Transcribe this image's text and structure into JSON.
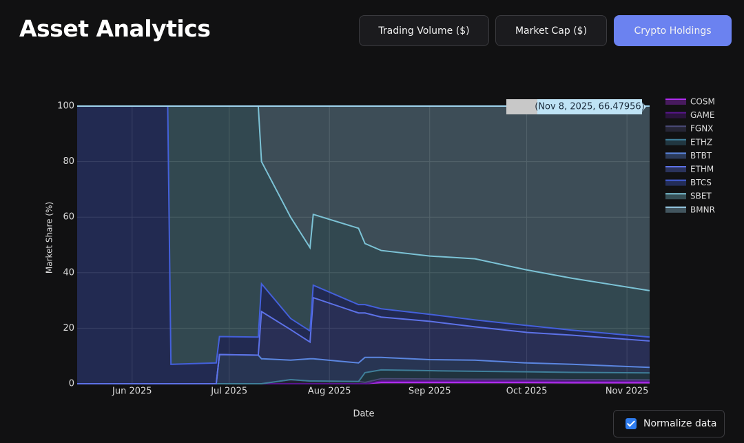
{
  "header": {
    "title": "Asset Analytics"
  },
  "buttons": [
    "Trading Volume ($)",
    "Market Cap ($)",
    "Crypto Holdings"
  ],
  "chart_data": {
    "type": "area",
    "stacked": true,
    "grid": true,
    "xlabel": "Date",
    "ylabel": "Market Share (%)",
    "annotation": "(Nov 8, 2025, 66.47956)",
    "xlim": [
      "2025-05-15",
      "2025-11-08"
    ],
    "xticks": [
      {
        "value": "2025-06-01",
        "label": "Jun 2025"
      },
      {
        "value": "2025-07-01",
        "label": "Jul 2025"
      },
      {
        "value": "2025-08-01",
        "label": "Aug 2025"
      },
      {
        "value": "2025-09-01",
        "label": "Sep 2025"
      },
      {
        "value": "2025-10-01",
        "label": "Oct 2025"
      },
      {
        "value": "2025-11-01",
        "label": "Nov 2025"
      }
    ],
    "ylim": [
      0,
      100
    ],
    "yticks": [
      0,
      20,
      40,
      60,
      80,
      100
    ],
    "x": [
      "2025-05-15",
      "2025-06-12",
      "2025-06-13",
      "2025-06-27",
      "2025-06-28",
      "2025-07-10",
      "2025-07-11",
      "2025-07-20",
      "2025-07-26",
      "2025-07-27",
      "2025-08-10",
      "2025-08-12",
      "2025-08-17",
      "2025-09-01",
      "2025-09-15",
      "2025-10-01",
      "2025-10-15",
      "2025-11-08"
    ],
    "series": [
      {
        "name": "COSM",
        "color": "#b02cf0",
        "values": [
          0,
          0,
          0,
          0,
          0,
          0,
          0,
          0,
          0,
          0,
          0,
          0,
          0.5,
          0.5,
          0.5,
          0.5,
          0.4,
          0.4
        ]
      },
      {
        "name": "GAME",
        "color": "#5a1690",
        "values": [
          0,
          0,
          0,
          0,
          0,
          0,
          0,
          0,
          0,
          0,
          0,
          0,
          0.5,
          0.5,
          0.5,
          0.5,
          0.5,
          0.5
        ]
      },
      {
        "name": "FGNX",
        "color": "#4a4a78",
        "values": [
          0,
          0,
          0,
          0,
          0,
          0,
          0,
          1.5,
          1,
          1,
          0.8,
          0.5,
          0.8,
          0.7,
          0.6,
          0.6,
          0.6,
          0.5
        ]
      },
      {
        "name": "ETHZ",
        "color": "#3f7f9a",
        "values": [
          0,
          0,
          0,
          0,
          0,
          0,
          0,
          0,
          0,
          0,
          0,
          3.5,
          3.2,
          3,
          2.9,
          2.7,
          2.6,
          2.5
        ]
      },
      {
        "name": "BTBT",
        "color": "#5b86e0",
        "values": [
          0,
          0,
          0,
          0,
          10.5,
          10.3,
          9,
          7,
          8,
          8,
          6.7,
          5.5,
          4.5,
          4,
          4,
          3.2,
          2.9,
          2
        ]
      },
      {
        "name": "ETHM",
        "color": "#5d72e8",
        "values": [
          0,
          0,
          0,
          0,
          0,
          0,
          17,
          11,
          6,
          22,
          18,
          16,
          14.5,
          13.8,
          12,
          11,
          10.5,
          9.5
        ]
      },
      {
        "name": "BTCS",
        "color": "#4460dc",
        "values": [
          100,
          100,
          7,
          7.5,
          6.5,
          6.5,
          10,
          4,
          4,
          4.5,
          3,
          3,
          3,
          2.5,
          2.5,
          2.5,
          1.8,
          1.4
        ]
      },
      {
        "name": "SBET",
        "color": "#7cc3d6",
        "values": [
          0,
          0,
          93,
          92.5,
          83,
          83.2,
          44,
          36.5,
          30,
          25.5,
          27.5,
          22,
          21,
          21,
          22,
          20,
          18.7,
          16.72044
        ]
      },
      {
        "name": "BMNR",
        "color": "#9fd4ef",
        "values": [
          0,
          0,
          0,
          0,
          0,
          0,
          20,
          40,
          51,
          39,
          44,
          49.5,
          52,
          54,
          55,
          59,
          62,
          66.47956
        ]
      }
    ]
  },
  "normalize": {
    "label": "Normalize data",
    "checked": true
  }
}
